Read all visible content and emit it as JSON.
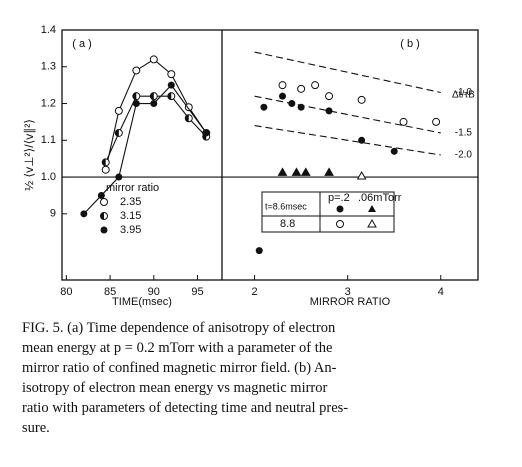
{
  "chart_data": [
    {
      "type": "line",
      "panel_label": "( a )",
      "x_label": "TIME(msec)",
      "y_label": "½ ⟨v⊥²⟩/⟨v∥²⟩",
      "xlim": [
        79.5,
        97.8
      ],
      "xticks": [
        80,
        85,
        90,
        95
      ],
      "ylim": [
        0.72,
        1.4
      ],
      "yticks": [
        {
          "value": 0.9,
          "label": "9"
        },
        {
          "value": 1.0,
          "label": "1.0"
        },
        1.1,
        1.2,
        1.3,
        1.4
      ],
      "reference_line": 1.0,
      "legend_title": "mirror ratio",
      "series": [
        {
          "name": "2.35",
          "marker": "open",
          "x": [
            84.5,
            86,
            88,
            90,
            92,
            94,
            96
          ],
          "values": [
            1.02,
            1.18,
            1.29,
            1.32,
            1.28,
            1.19,
            1.12
          ]
        },
        {
          "name": "3.15",
          "marker": "half",
          "x": [
            84.5,
            86,
            88,
            90,
            92,
            94,
            96
          ],
          "values": [
            1.04,
            1.12,
            1.22,
            1.22,
            1.22,
            1.16,
            1.11
          ]
        },
        {
          "name": "3.95",
          "marker": "filled",
          "x": [
            82,
            84,
            86,
            88,
            90,
            92,
            96
          ],
          "values": [
            0.9,
            0.95,
            1.0,
            1.2,
            1.2,
            1.25,
            1.12
          ]
        }
      ]
    },
    {
      "type": "scatter",
      "panel_label": "( b )",
      "x_label": "MIRROR RATIO",
      "annotation": "Δt/τB",
      "xlim": [
        1.65,
        4.4
      ],
      "xticks": [
        2,
        3,
        4
      ],
      "ylim": [
        0.72,
        1.4
      ],
      "reference_line": 1.0,
      "series": [
        {
          "name": "-1.0",
          "marker": "none",
          "dashed": true,
          "x": [
            2,
            4
          ],
          "values": [
            1.34,
            1.23
          ]
        },
        {
          "name": "-1.5",
          "marker": "none",
          "dashed": true,
          "x": [
            2,
            4
          ],
          "values": [
            1.22,
            1.12
          ]
        },
        {
          "name": "-2.0",
          "marker": "none",
          "dashed": true,
          "x": [
            2,
            4
          ],
          "values": [
            1.14,
            1.06
          ]
        },
        {
          "marker": "open",
          "x": [
            2.3,
            2.5,
            2.65,
            2.8,
            3.15,
            3.6,
            3.95
          ],
          "values": [
            1.25,
            1.24,
            1.25,
            1.22,
            1.21,
            1.15,
            1.15
          ]
        },
        {
          "marker": "filled",
          "x": [
            2.05,
            2.1,
            2.3,
            2.4,
            2.5,
            2.8,
            3.15,
            3.5
          ],
          "values": [
            0.8,
            1.19,
            1.22,
            1.2,
            1.19,
            1.18,
            1.1,
            1.07
          ]
        },
        {
          "marker": "tri-filled",
          "x": [
            2.3,
            2.45,
            2.55,
            2.8
          ],
          "values": [
            1.01,
            1.01,
            1.01,
            1.01
          ]
        },
        {
          "marker": "tri-open",
          "x": [
            3.15
          ],
          "values": [
            1.0
          ]
        }
      ],
      "legend_table": {
        "header": [
          "p=.2",
          ".06mTorr"
        ],
        "rows": [
          "t=8.6msec",
          "8.8"
        ]
      }
    }
  ],
  "caption": [
    "FIG. 5.  (a) Time dependence of anisotropy of electron",
    "mean energy at p = 0.2 mTorr with a parameter of the",
    "mirror ratio of confined magnetic mirror field.  (b) An-",
    "isotropy of electron mean energy vs magnetic mirror",
    "ratio with parameters of detecting time and neutral pres-",
    "sure."
  ]
}
